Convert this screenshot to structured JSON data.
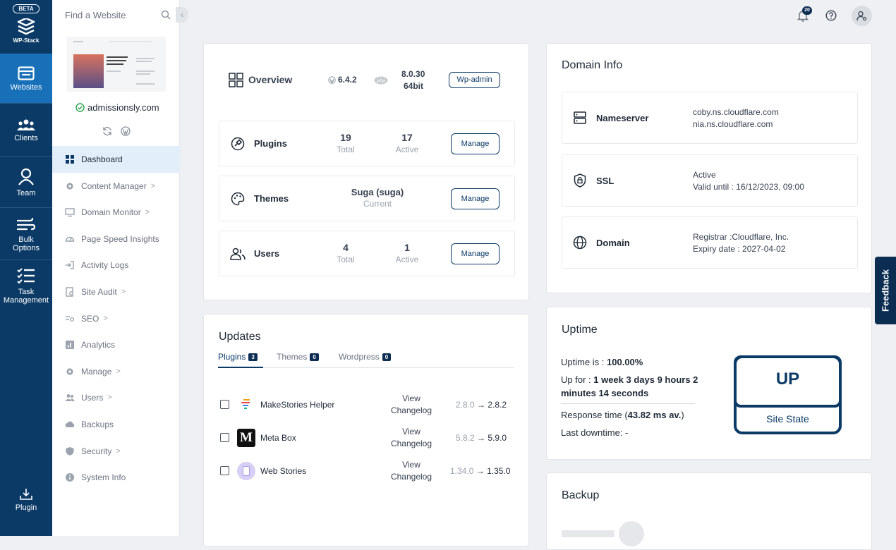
{
  "rail": {
    "beta": "BETA",
    "logo_text": "WP-Stack",
    "items": [
      {
        "label": "Websites",
        "icon": "websites-icon"
      },
      {
        "label": "Clients",
        "icon": "clients-icon"
      },
      {
        "label": "Team",
        "icon": "team-icon"
      },
      {
        "label_line1": "Bulk",
        "label_line2": "Options",
        "icon": "bulk-options-icon"
      },
      {
        "label_line1": "Task",
        "label_line2": "Management",
        "icon": "task-management-icon"
      },
      {
        "label": "Plugin",
        "icon": "plugin-download-icon"
      }
    ]
  },
  "sidebar": {
    "search_placeholder": "Find a Website",
    "site_name": "admissionsly.com",
    "nav": [
      {
        "label": "Dashboard",
        "icon": "dashboard-icon",
        "chevron": false
      },
      {
        "label": "Content Manager",
        "icon": "gear-icon",
        "chevron": true
      },
      {
        "label": "Domain Monitor",
        "icon": "monitor-icon",
        "chevron": true
      },
      {
        "label": "Page Speed Insights",
        "icon": "speedometer-icon",
        "chevron": false
      },
      {
        "label": "Activity Logs",
        "icon": "login-icon",
        "chevron": false
      },
      {
        "label": "Site Audit",
        "icon": "audit-icon",
        "chevron": true
      },
      {
        "label": "SEO",
        "icon": "seo-icon",
        "chevron": true
      },
      {
        "label": "Analytics",
        "icon": "analytics-icon",
        "chevron": false
      },
      {
        "label": "Manage",
        "icon": "gear-icon",
        "chevron": true
      },
      {
        "label": "Users",
        "icon": "users-icon",
        "chevron": true
      },
      {
        "label": "Backups",
        "icon": "cloud-icon",
        "chevron": false
      },
      {
        "label": "Security",
        "icon": "shield-icon",
        "chevron": true
      },
      {
        "label": "System Info",
        "icon": "info-icon",
        "chevron": false
      }
    ],
    "chevron": ">"
  },
  "topbar": {
    "collapse": "‹",
    "notification_count": "20"
  },
  "overview": {
    "title": "Overview",
    "wp_version": "6.4.2",
    "php_version_line1": "8.0.30",
    "php_version_line2": "64bit",
    "wpadmin": "Wp-admin",
    "plugins": {
      "label": "Plugins",
      "total": "19",
      "total_label": "Total",
      "active": "17",
      "active_label": "Active",
      "button": "Manage"
    },
    "themes": {
      "label": "Themes",
      "name": "Suga (suga)",
      "sub": "Current",
      "button": "Manage"
    },
    "users": {
      "label": "Users",
      "total": "4",
      "total_label": "Total",
      "active": "1",
      "active_label": "Active",
      "button": "Manage"
    }
  },
  "updates": {
    "title": "Updates",
    "tabs": [
      {
        "label": "Plugins",
        "count": "3"
      },
      {
        "label": "Themes",
        "count": "0"
      },
      {
        "label": "Wordpress",
        "count": "0"
      }
    ],
    "rows": [
      {
        "name": "MakeStories Helper",
        "view1": "View",
        "view2": "Changelog",
        "from": "2.8.0",
        "arrow": "→",
        "to": "2.8.2"
      },
      {
        "name": "Meta Box",
        "view1": "View",
        "view2": "Changelog",
        "from": "5.8.2",
        "arrow": "→",
        "to": "5.9.0"
      },
      {
        "name": "Web Stories",
        "view1": "View",
        "view2": "Changelog",
        "from": "1.34.0",
        "arrow": "→",
        "to": "1.35.0"
      }
    ]
  },
  "domain": {
    "title": "Domain Info",
    "nameserver": {
      "label": "Nameserver",
      "line1": "coby.ns.cloudflare.com",
      "line2": "nia.ns.cloudflare.com"
    },
    "ssl": {
      "label": "SSL",
      "line1": "Active",
      "line2": "Valid until : 16/12/2023, 09:00"
    },
    "domain": {
      "label": "Domain",
      "line1": "Registrar :Cloudflare, Inc.",
      "line2": "Expiry date : 2027-04-02"
    }
  },
  "uptime": {
    "title": "Uptime",
    "uptime_prefix": "Uptime is : ",
    "uptime_value": "100.00%",
    "upfor_prefix": "Up for : ",
    "upfor_value_line1": "1 week 3 days 9 hours 2",
    "upfor_value_line2": "minutes 14 seconds",
    "response_prefix": "Response time (",
    "response_value": "43.82 ms av.",
    "response_suffix": ")",
    "last_downtime": "Last downtime: -",
    "state": "UP",
    "state_label": "Site State"
  },
  "backup": {
    "title": "Backup"
  },
  "feedback": "Feedback",
  "colors": {
    "rail": "#0b3a66",
    "accent": "#1770b8",
    "dark": "#0b2d52"
  }
}
